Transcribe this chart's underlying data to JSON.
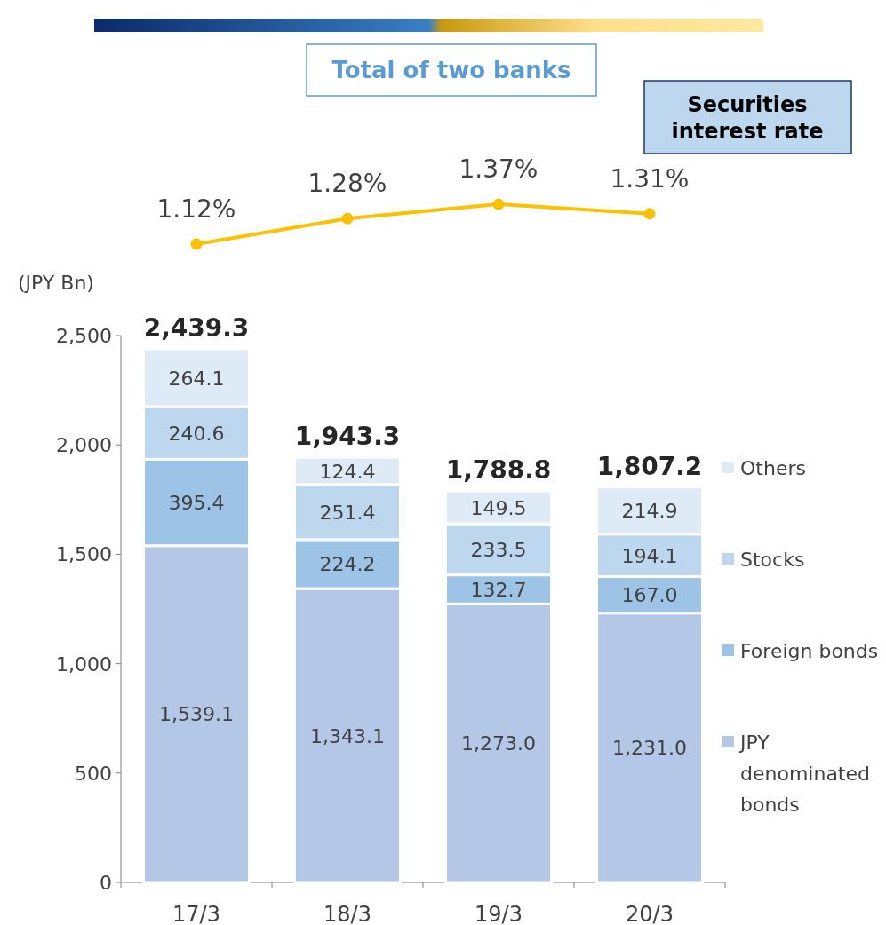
{
  "chart_data": [
    {
      "type": "line",
      "title": "Total of two banks",
      "categories": [
        null,
        null,
        null,
        null
      ],
      "marker": "circle",
      "series": [
        {
          "name": "Securities interest rate",
          "color": "#ffc000",
          "values": [
            1.12,
            1.28,
            1.37,
            1.31
          ],
          "value_labels": [
            "1.12%",
            "1.28%",
            "1.37%",
            "1.31%"
          ]
        }
      ]
    },
    {
      "type": "bar",
      "stacked": true,
      "ylabel": "(JPY Bn)",
      "categories": [
        "17/3",
        "18/3",
        "19/3",
        "20/3"
      ],
      "ylim": [
        0,
        2500
      ],
      "yticks": [
        0,
        500,
        {
          "value": 1000,
          "label": "1,000"
        },
        {
          "value": 1500,
          "label": "1,500"
        },
        {
          "value": 2000,
          "label": "2,000"
        },
        {
          "value": 2500,
          "label": "2,500"
        }
      ],
      "legend": "right",
      "totals": [
        "2,439.3",
        "1,943.3",
        "1,788.8",
        "1,807.2"
      ],
      "series": [
        {
          "name": "JPY denominated bonds",
          "color": "#b4c7e7",
          "values": [
            1539.1,
            1343.1,
            1273.0,
            1231.0
          ],
          "value_labels": [
            "1,539.1",
            "1,343.1",
            "1,273.0",
            "1,231.0"
          ]
        },
        {
          "name": "Foreign bonds",
          "color": "#9dc3e6",
          "values": [
            395.4,
            224.2,
            132.7,
            167.0
          ],
          "value_labels": [
            "395.4",
            "224.2",
            "132.7",
            "167.0"
          ]
        },
        {
          "name": "Stocks",
          "color": "#bdd7ee",
          "values": [
            240.6,
            251.4,
            233.5,
            194.1
          ],
          "value_labels": [
            "240.6",
            "251.4",
            "233.5",
            "194.1"
          ]
        },
        {
          "name": "Others",
          "color": "#deebf7",
          "values": [
            264.1,
            124.4,
            149.5,
            214.9
          ],
          "value_labels": [
            "264.1",
            "124.4",
            "149.5",
            "214.9"
          ]
        }
      ]
    }
  ]
}
